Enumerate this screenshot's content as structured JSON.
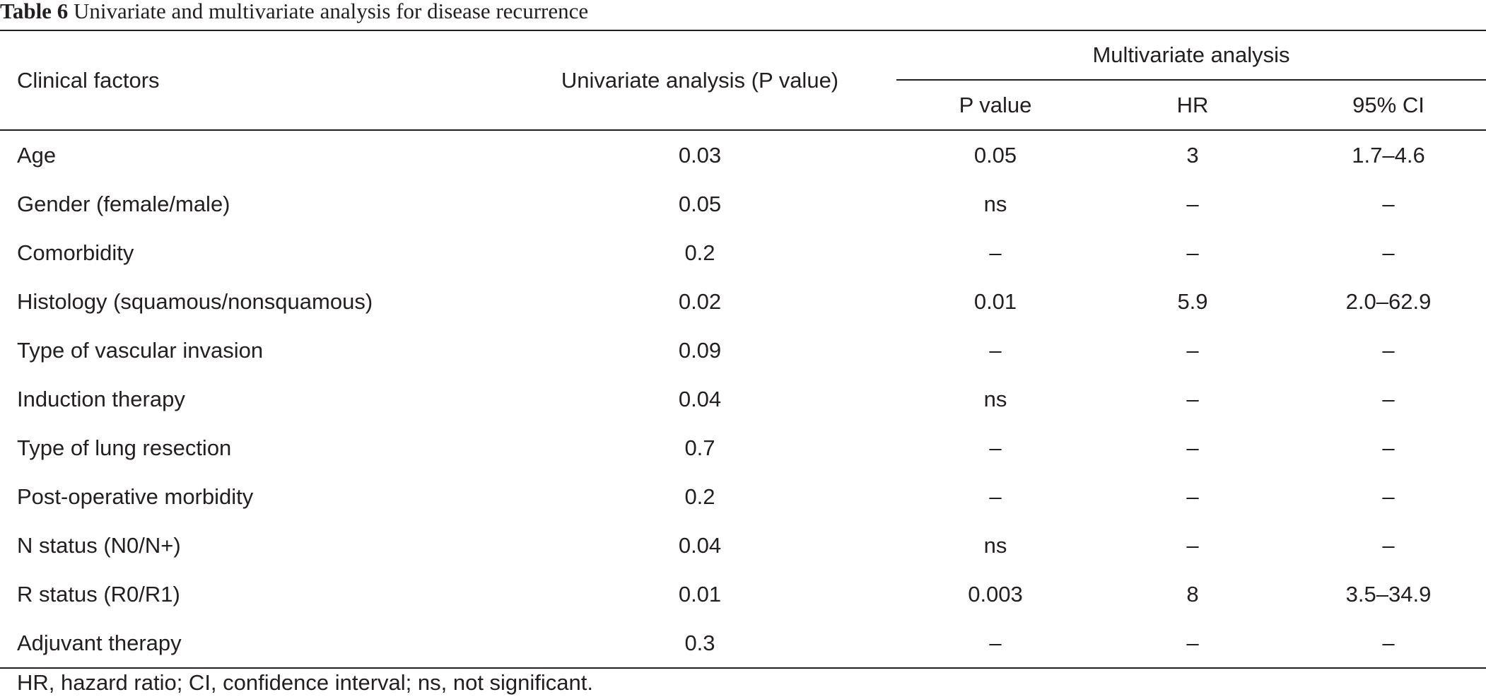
{
  "caption": {
    "label": "Table 6",
    "title": "Univariate and multivariate analysis for disease recurrence"
  },
  "headers": {
    "clinical_factors": "Clinical factors",
    "univariate": "Univariate analysis (P value)",
    "multivariate": "Multivariate analysis",
    "p_value": "P value",
    "hr": "HR",
    "ci": "95% CI"
  },
  "rows": [
    {
      "factor": "Age",
      "univariate_p": "0.03",
      "multi_p": "0.05",
      "hr": "3",
      "ci": "1.7–4.6"
    },
    {
      "factor": "Gender (female/male)",
      "univariate_p": "0.05",
      "multi_p": "ns",
      "hr": "–",
      "ci": "–"
    },
    {
      "factor": "Comorbidity",
      "univariate_p": "0.2",
      "multi_p": "–",
      "hr": "–",
      "ci": "–"
    },
    {
      "factor": "Histology (squamous/nonsquamous)",
      "univariate_p": "0.02",
      "multi_p": "0.01",
      "hr": "5.9",
      "ci": "2.0–62.9"
    },
    {
      "factor": "Type of vascular invasion",
      "univariate_p": "0.09",
      "multi_p": "–",
      "hr": "–",
      "ci": "–"
    },
    {
      "factor": "Induction therapy",
      "univariate_p": "0.04",
      "multi_p": "ns",
      "hr": "–",
      "ci": "–"
    },
    {
      "factor": "Type of lung resection",
      "univariate_p": "0.7",
      "multi_p": "–",
      "hr": "–",
      "ci": "–"
    },
    {
      "factor": "Post-operative morbidity",
      "univariate_p": "0.2",
      "multi_p": "–",
      "hr": "–",
      "ci": "–"
    },
    {
      "factor": "N status (N0/N+)",
      "univariate_p": "0.04",
      "multi_p": "ns",
      "hr": "–",
      "ci": "–"
    },
    {
      "factor": "R status (R0/R1)",
      "univariate_p": "0.01",
      "multi_p": "0.003",
      "hr": "8",
      "ci": "3.5–34.9"
    },
    {
      "factor": "Adjuvant therapy",
      "univariate_p": "0.3",
      "multi_p": "–",
      "hr": "–",
      "ci": "–"
    }
  ],
  "footnote": "HR, hazard ratio; CI, confidence interval; ns, not significant."
}
